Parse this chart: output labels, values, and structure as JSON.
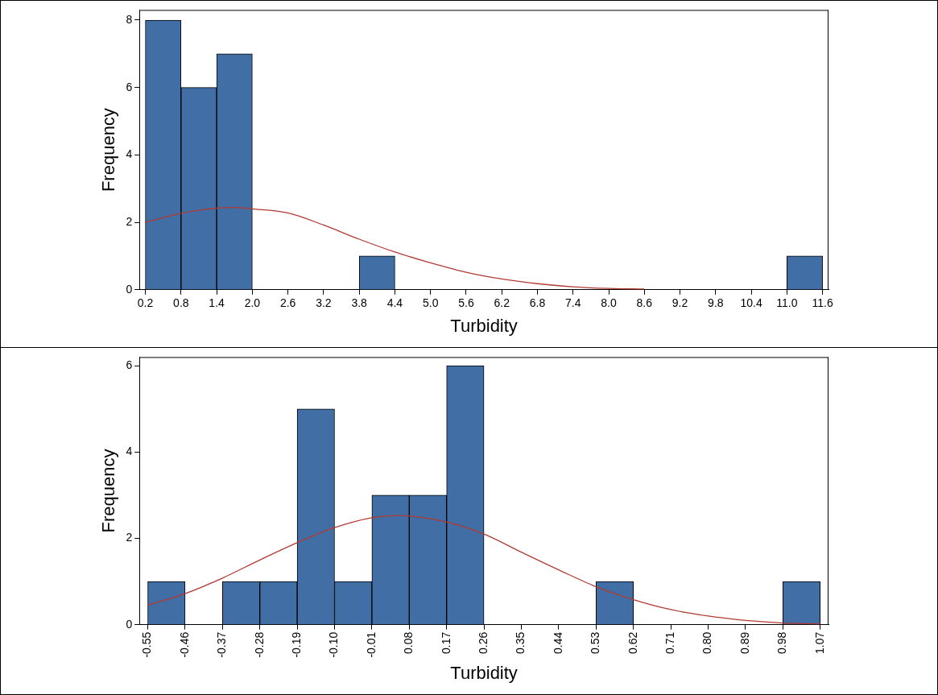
{
  "chart_data": [
    {
      "type": "histogram",
      "xlabel": "Turbidity",
      "ylabel": "Frequency",
      "color": "#416ea4",
      "bins": [
        0.2,
        0.8,
        1.4,
        2.0,
        2.6,
        3.2,
        3.8,
        4.4,
        5.0,
        5.6,
        6.2,
        6.8,
        7.4,
        8.0,
        8.6,
        9.2,
        9.8,
        10.4,
        11.0,
        11.6
      ],
      "values": [
        8,
        6,
        7,
        0,
        0,
        0,
        1,
        0,
        0,
        0,
        0,
        0,
        0,
        0,
        0,
        0,
        0,
        0,
        1
      ],
      "series": [
        {
          "type": "line",
          "color": "#b23a33",
          "x": [
            0.2,
            0.8,
            1.4,
            1.7,
            2.0,
            2.6,
            3.2,
            3.8,
            4.4,
            5.0,
            5.6,
            6.2,
            6.8,
            7.4,
            8.0,
            8.6
          ],
          "values": [
            2.0,
            2.27,
            2.42,
            2.44,
            2.4,
            2.28,
            1.92,
            1.5,
            1.12,
            0.8,
            0.52,
            0.32,
            0.18,
            0.09,
            0.04,
            0.02
          ]
        }
      ],
      "xlim": [
        0.1,
        11.7
      ],
      "ylim": [
        0,
        8.3
      ],
      "yticks": [
        0,
        2,
        4,
        6,
        8
      ],
      "xticks": [
        {
          "value": 0.2,
          "label": "0.2"
        },
        {
          "value": 0.8,
          "label": "0.8"
        },
        {
          "value": 1.4,
          "label": "1.4"
        },
        {
          "value": 2.0,
          "label": "2.0"
        },
        {
          "value": 2.6,
          "label": "2.6"
        },
        {
          "value": 3.2,
          "label": "3.2"
        },
        {
          "value": 3.8,
          "label": "3.8"
        },
        {
          "value": 4.4,
          "label": "4.4"
        },
        {
          "value": 5.0,
          "label": "5.0"
        },
        {
          "value": 5.6,
          "label": "5.6"
        },
        {
          "value": 6.2,
          "label": "6.2"
        },
        {
          "value": 6.8,
          "label": "6.8"
        },
        {
          "value": 7.4,
          "label": "7.4"
        },
        {
          "value": 8.0,
          "label": "8.0"
        },
        {
          "value": 8.6,
          "label": "8.6"
        },
        {
          "value": 9.2,
          "label": "9.2"
        },
        {
          "value": 9.8,
          "label": "9.8"
        },
        {
          "value": 10.4,
          "label": "10.4"
        },
        {
          "value": 11.0,
          "label": "11.0"
        },
        {
          "value": 11.6,
          "label": "11.6"
        }
      ],
      "grid": false,
      "legend": false
    },
    {
      "type": "histogram",
      "xlabel": "Turbidity",
      "ylabel": "Frequency",
      "color": "#416ea4",
      "bins": [
        -0.55,
        -0.46,
        -0.37,
        -0.28,
        -0.19,
        -0.1,
        -0.01,
        0.08,
        0.17,
        0.26,
        0.35,
        0.44,
        0.53,
        0.62,
        0.71,
        0.8,
        0.89,
        0.98,
        1.07
      ],
      "values": [
        1,
        0,
        1,
        1,
        5,
        1,
        3,
        3,
        6,
        0,
        0,
        0,
        1,
        0,
        0,
        0,
        0,
        1
      ],
      "series": [
        {
          "type": "line",
          "color": "#b23a33",
          "x": [
            -0.55,
            -0.46,
            -0.37,
            -0.28,
            -0.19,
            -0.1,
            -0.01,
            0.05,
            0.08,
            0.17,
            0.26,
            0.35,
            0.44,
            0.53,
            0.62,
            0.71,
            0.8,
            0.89,
            0.98,
            1.07
          ],
          "values": [
            0.45,
            0.72,
            1.08,
            1.5,
            1.9,
            2.25,
            2.48,
            2.53,
            2.52,
            2.38,
            2.1,
            1.68,
            1.27,
            0.88,
            0.58,
            0.35,
            0.2,
            0.1,
            0.04,
            0.02
          ]
        }
      ],
      "xlim": [
        -0.57,
        1.09
      ],
      "ylim": [
        0,
        6.2
      ],
      "yticks": [
        0,
        2,
        4,
        6
      ],
      "xticks": [
        {
          "value": -0.55,
          "label": "-0.55"
        },
        {
          "value": -0.46,
          "label": "-0.46"
        },
        {
          "value": -0.37,
          "label": "-0.37"
        },
        {
          "value": -0.28,
          "label": "-0.28"
        },
        {
          "value": -0.19,
          "label": "-0.19"
        },
        {
          "value": -0.1,
          "label": "-0.10"
        },
        {
          "value": -0.01,
          "label": "-0.01"
        },
        {
          "value": 0.08,
          "label": "0.08"
        },
        {
          "value": 0.17,
          "label": "0.17"
        },
        {
          "value": 0.26,
          "label": "0.26"
        },
        {
          "value": 0.35,
          "label": "0.35"
        },
        {
          "value": 0.44,
          "label": "0.44"
        },
        {
          "value": 0.53,
          "label": "0.53"
        },
        {
          "value": 0.62,
          "label": "0.62"
        },
        {
          "value": 0.71,
          "label": "0.71"
        },
        {
          "value": 0.8,
          "label": "0.80"
        },
        {
          "value": 0.89,
          "label": "0.89"
        },
        {
          "value": 0.98,
          "label": "0.98"
        },
        {
          "value": 1.07,
          "label": "1.07"
        }
      ],
      "grid": false,
      "legend": false
    }
  ]
}
